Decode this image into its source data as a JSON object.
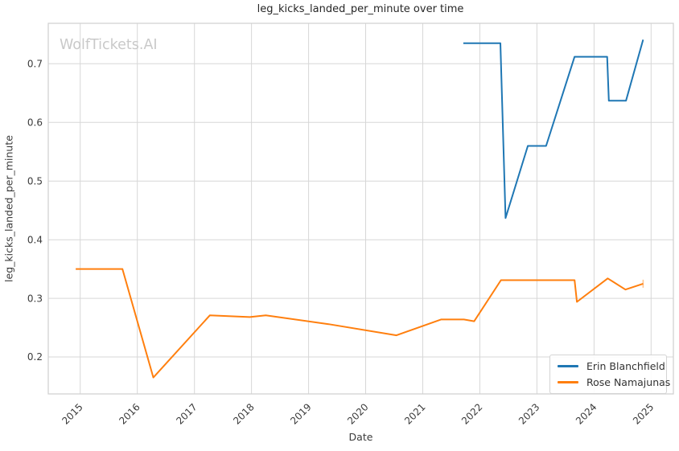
{
  "watermark": "WolfTickets.AI",
  "chart_data": {
    "type": "line",
    "title": "leg_kicks_landed_per_minute over time",
    "xlabel": "Date",
    "ylabel": "leg_kicks_landed_per_minute",
    "xlim": [
      2014.44,
      2025.39
    ],
    "ylim": [
      0.137,
      0.769
    ],
    "x_ticks": [
      2015,
      2016,
      2017,
      2018,
      2019,
      2020,
      2021,
      2022,
      2023,
      2024,
      2025
    ],
    "y_ticks": [
      0.2,
      0.3,
      0.4,
      0.5,
      0.6,
      0.7
    ],
    "grid": true,
    "grid_color": "#d7d7d7",
    "frame_color": "#cfcfcf",
    "tick_label_color": "#3b3b3b",
    "legend_position": "lower right",
    "series": [
      {
        "name": "Erin Blanchfield",
        "color": "#1f77b4",
        "end_cap": false,
        "x": [
          2021.71,
          2022.36,
          2022.45,
          2022.84,
          2023.16,
          2023.66,
          2024.23,
          2024.26,
          2024.56,
          2024.86
        ],
        "y": [
          0.735,
          0.735,
          0.437,
          0.56,
          0.56,
          0.712,
          0.712,
          0.637,
          0.637,
          0.741
        ]
      },
      {
        "name": "Rose Namajunas",
        "color": "#ff7f0e",
        "end_cap": true,
        "x": [
          2014.92,
          2015.74,
          2016.28,
          2017.27,
          2017.97,
          2018.25,
          2019.35,
          2020.54,
          2021.32,
          2021.72,
          2021.9,
          2022.37,
          2023.66,
          2023.7,
          2024.24,
          2024.55,
          2024.86
        ],
        "y": [
          0.35,
          0.35,
          0.165,
          0.271,
          0.268,
          0.271,
          0.256,
          0.237,
          0.264,
          0.264,
          0.261,
          0.331,
          0.331,
          0.294,
          0.334,
          0.315,
          0.325
        ]
      }
    ]
  }
}
